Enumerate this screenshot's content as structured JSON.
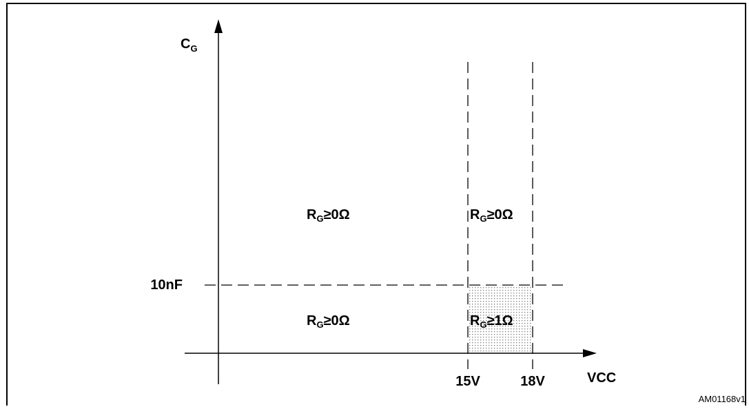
{
  "axes": {
    "y_label": "C",
    "y_label_sub": "G",
    "x_label": "VCC"
  },
  "ticks": {
    "y": "10nF",
    "x": [
      "15V",
      "18V"
    ]
  },
  "regions": [
    {
      "main": "R",
      "sub": "G",
      "rest": "≥0Ω"
    },
    {
      "main": "R",
      "sub": "G",
      "rest": "≥0Ω"
    },
    {
      "main": "R",
      "sub": "G",
      "rest": "≥0Ω"
    },
    {
      "main": "R",
      "sub": "G",
      "rest": "≥1Ω"
    }
  ],
  "figure_id": "AM01168v1"
}
